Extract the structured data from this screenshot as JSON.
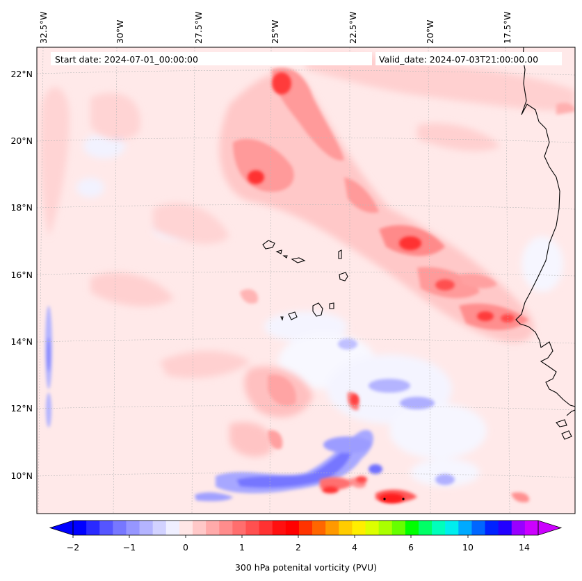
{
  "header": {
    "start_date": "Start date: 2024-07-01_00:00:00",
    "valid_date": "Valid_date: 2024-07-03T21:00:00.00"
  },
  "longitude_labels": [
    "32.5°W",
    "30°W",
    "27.5°W",
    "25°W",
    "22.5°W",
    "20°W",
    "17.5°W"
  ],
  "latitude_labels": [
    "22°N",
    "20°N",
    "18°N",
    "16°N",
    "14°N",
    "12°N",
    "10°N"
  ],
  "colorbar": {
    "title": "300 hPa potenital vorticity (PVU)",
    "tick_labels": [
      "−2",
      "−1",
      "0",
      "1",
      "2",
      "4",
      "6",
      "10",
      "14"
    ],
    "colors": [
      "#0000ff",
      "#2a2aff",
      "#5555ff",
      "#7777ff",
      "#9696ff",
      "#b4b4ff",
      "#d2d2ff",
      "#efefff",
      "#ffe6e6",
      "#ffc8c8",
      "#ffaaaa",
      "#ff8c8c",
      "#ff6e6e",
      "#ff5050",
      "#ff3232",
      "#ff1010",
      "#ff0000",
      "#ff3300",
      "#ff6600",
      "#ff9900",
      "#ffcc00",
      "#ffee00",
      "#ddff00",
      "#aaff00",
      "#66ff00",
      "#00ff00",
      "#00ff66",
      "#00ffbb",
      "#00eeee",
      "#00aaff",
      "#0066ff",
      "#0022ff",
      "#2200ff",
      "#9900ff",
      "#cc00ff"
    ],
    "extend_low": "#0000ff",
    "extend_high": "#cc00ff"
  },
  "map_colors": {
    "background": "#ffe9e9",
    "land_outline": "#000000"
  }
}
